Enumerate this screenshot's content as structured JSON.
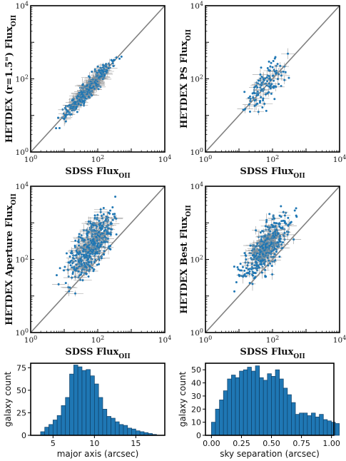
{
  "chart_data": [
    {
      "type": "scatter",
      "xlabel": "SDSS Flux",
      "xlabel_sub": "OII",
      "ylabel": "HETDEX (r=1.5\") Flux",
      "ylabel_sub": "OII",
      "xlim": [
        1,
        10000
      ],
      "ylim": [
        1,
        10000
      ],
      "log_scale": true,
      "ticks": [
        {
          "base": "10",
          "exp": "0"
        },
        {
          "base": "10",
          "exp": "2"
        },
        {
          "base": "10",
          "exp": "4"
        }
      ],
      "one_to_one_line": true,
      "color": "#1f77b4",
      "seed": 11,
      "n": 480,
      "slope": 1.0,
      "offset": 0.0,
      "scatter": 0.12,
      "x_center": 1.75,
      "x_sigma": 0.33
    },
    {
      "type": "scatter",
      "xlabel": "SDSS Flux",
      "xlabel_sub": "OII",
      "ylabel": "HETDEX PS Flux",
      "ylabel_sub": "OII",
      "xlim": [
        1,
        10000
      ],
      "ylim": [
        1,
        10000
      ],
      "log_scale": true,
      "ticks": [
        {
          "base": "10",
          "exp": "0"
        },
        {
          "base": "10",
          "exp": "2"
        },
        {
          "base": "10",
          "exp": "4"
        }
      ],
      "one_to_one_line": true,
      "color": "#1f77b4",
      "seed": 23,
      "n": 130,
      "slope": 0.8,
      "offset": 0.35,
      "scatter": 0.25,
      "x_center": 1.8,
      "x_sigma": 0.3
    },
    {
      "type": "scatter",
      "xlabel": "SDSS Flux",
      "xlabel_sub": "OII",
      "ylabel": "HETDEX Aperture Flux",
      "ylabel_sub": "OII",
      "xlim": [
        1,
        10000
      ],
      "ylim": [
        1,
        10000
      ],
      "log_scale": true,
      "ticks": [
        {
          "base": "10",
          "exp": "0"
        },
        {
          "base": "10",
          "exp": "2"
        },
        {
          "base": "10",
          "exp": "4"
        }
      ],
      "one_to_one_line": true,
      "color": "#1f77b4",
      "seed": 37,
      "n": 520,
      "slope": 0.9,
      "offset": 0.75,
      "scatter": 0.3,
      "x_center": 1.8,
      "x_sigma": 0.33
    },
    {
      "type": "scatter",
      "xlabel": "SDSS Flux",
      "xlabel_sub": "OII",
      "ylabel": "HETDEX Best Flux",
      "ylabel_sub": "OII",
      "xlim": [
        1,
        10000
      ],
      "ylim": [
        1,
        10000
      ],
      "log_scale": true,
      "ticks": [
        {
          "base": "10",
          "exp": "0"
        },
        {
          "base": "10",
          "exp": "2"
        },
        {
          "base": "10",
          "exp": "4"
        }
      ],
      "one_to_one_line": true,
      "color": "#1f77b4",
      "seed": 53,
      "n": 520,
      "slope": 0.9,
      "offset": 0.7,
      "scatter": 0.3,
      "x_center": 1.8,
      "x_sigma": 0.33
    },
    {
      "type": "bar",
      "subtype": "histogram",
      "xlabel": "major axis (arcsec)",
      "ylabel": "galaxy count",
      "bin_start": 3.5,
      "bin_width": 0.5,
      "values": [
        4,
        9,
        12,
        17,
        22,
        33,
        42,
        68,
        78,
        76,
        72,
        73,
        66,
        57,
        42,
        29,
        21,
        19,
        15,
        12,
        11,
        8,
        7,
        5,
        4,
        3,
        2,
        1
      ],
      "xlim": [
        2.3,
        18.5
      ],
      "ylim": [
        0,
        80
      ],
      "xticks": [
        "5",
        "10",
        "15"
      ],
      "yticks": [
        "0",
        "25",
        "50",
        "75"
      ],
      "color": "#1f77b4"
    },
    {
      "type": "bar",
      "subtype": "histogram",
      "xlabel": "sky separation (arcsec)",
      "ylabel": "galaxy count",
      "bin_start": 0.0,
      "bin_width": 0.0333,
      "values": [
        10,
        20,
        27,
        34,
        43,
        46,
        44,
        49,
        50,
        52,
        49,
        53,
        44,
        42,
        47,
        45,
        50,
        43,
        36,
        31,
        25,
        16,
        17,
        17,
        15,
        17,
        14,
        16,
        12,
        11,
        10,
        9
      ],
      "xlim": [
        -0.05,
        1.02
      ],
      "ylim": [
        0,
        55
      ],
      "xticks": [
        "0.00",
        "0.25",
        "0.50",
        "0.75",
        "1.00"
      ],
      "yticks": [
        "0",
        "10",
        "20",
        "30",
        "40",
        "50"
      ],
      "color": "#1f77b4"
    }
  ]
}
